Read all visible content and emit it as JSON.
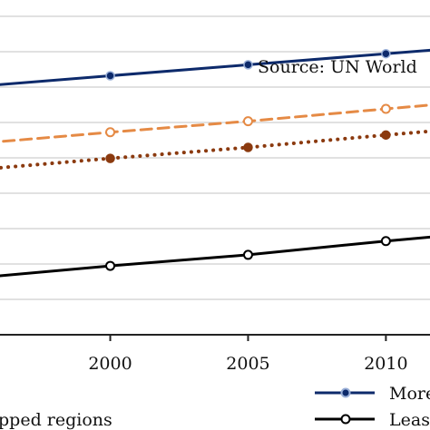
{
  "chart_data": {
    "type": "line",
    "source_note": "Source: UN World",
    "x": [
      2000,
      2005,
      2010
    ],
    "x_ticks": [
      "2000",
      "2005",
      "2010"
    ],
    "series": [
      {
        "name": "More",
        "color": "#0d2a6b",
        "dash": "solid",
        "marker": "filled",
        "values": [
          69.8,
          70.6,
          71.4
        ]
      },
      {
        "name": "",
        "color": "#e58a45",
        "dash": "dashed",
        "marker": "open",
        "values": [
          65.7,
          66.5,
          67.4
        ]
      },
      {
        "name": "",
        "color": "#8b3a0f",
        "dash": "dotted",
        "marker": "filled",
        "values": [
          63.8,
          64.6,
          65.5
        ]
      },
      {
        "name": "Leas",
        "color": "#000000",
        "dash": "solid",
        "marker": "open",
        "values": [
          56.0,
          56.8,
          57.8
        ]
      }
    ],
    "partial_label": "pped regions",
    "view_x_range": [
      1996,
      2011.6
    ],
    "ylim": [
      51.0,
      75.3
    ],
    "grid": true,
    "legend_position": "bottom-right"
  }
}
